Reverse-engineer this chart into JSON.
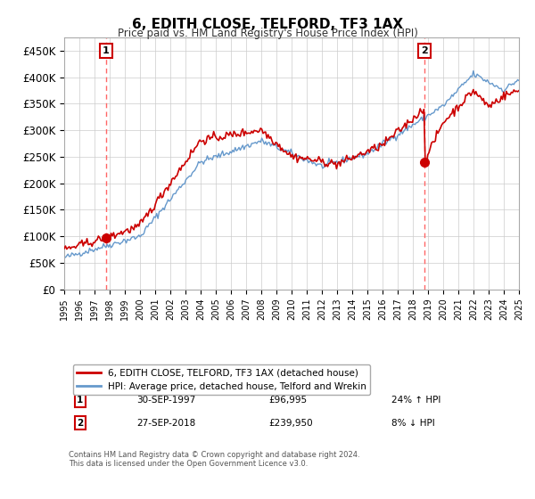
{
  "title": "6, EDITH CLOSE, TELFORD, TF3 1AX",
  "subtitle": "Price paid vs. HM Land Registry's House Price Index (HPI)",
  "ylabel_ticks": [
    "£0",
    "£50K",
    "£100K",
    "£150K",
    "£200K",
    "£250K",
    "£300K",
    "£350K",
    "£400K",
    "£450K"
  ],
  "ytick_values": [
    0,
    50000,
    100000,
    150000,
    200000,
    250000,
    300000,
    350000,
    400000,
    450000
  ],
  "ylim": [
    0,
    475000
  ],
  "xlim_years": [
    1995,
    2025
  ],
  "marker1": {
    "year": 1997.75,
    "value": 96995,
    "label": "1",
    "date": "30-SEP-1997",
    "price": "£96,995",
    "hpi_change": "24% ↑ HPI"
  },
  "marker2": {
    "year": 2018.75,
    "value": 239950,
    "label": "2",
    "date": "27-SEP-2018",
    "price": "£239,950",
    "hpi_change": "8% ↓ HPI"
  },
  "vline1_year": 1997.75,
  "vline2_year": 2018.75,
  "line1_color": "#cc0000",
  "line2_color": "#6699cc",
  "vline_color": "#ff6666",
  "marker_color": "#cc0000",
  "grid_color": "#cccccc",
  "box_color": "#cc0000",
  "legend_entries": [
    {
      "label": "6, EDITH CLOSE, TELFORD, TF3 1AX (detached house)",
      "color": "#cc0000"
    },
    {
      "label": "HPI: Average price, detached house, Telford and Wrekin",
      "color": "#6699cc"
    }
  ],
  "footnote": "Contains HM Land Registry data © Crown copyright and database right 2024.\nThis data is licensed under the Open Government Licence v3.0.",
  "background_color": "#ffffff",
  "plot_bg_color": "#ffffff"
}
